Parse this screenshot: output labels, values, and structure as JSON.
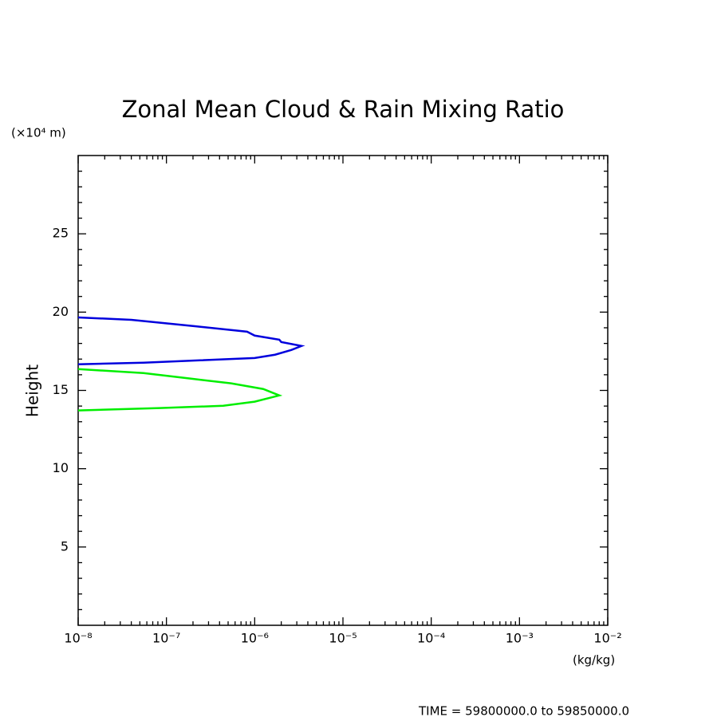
{
  "chart_data": {
    "type": "line",
    "title": "Zonal Mean Cloud & Rain Mixing Ratio",
    "y_label": "Height",
    "y_unit": "(×10⁴ m)",
    "x_unit": "(kg/kg)",
    "footer": "TIME = 59800000.0 to 59850000.0",
    "x_log": true,
    "xlim": [
      1e-08,
      0.01
    ],
    "ylim": [
      0,
      30
    ],
    "xticks": [
      {
        "value": 1e-08,
        "label": "10⁻⁸"
      },
      {
        "value": 1e-07,
        "label": "10⁻⁷"
      },
      {
        "value": 1e-06,
        "label": "10⁻⁶"
      },
      {
        "value": 1e-05,
        "label": "10⁻⁵"
      },
      {
        "value": 0.0001,
        "label": "10⁻⁴"
      },
      {
        "value": 0.001,
        "label": "10⁻³"
      },
      {
        "value": 0.01,
        "label": "10⁻²"
      }
    ],
    "xminorticks": [
      2e-08,
      3e-08,
      4e-08,
      5e-08,
      6e-08,
      7e-08,
      8e-08,
      9e-08,
      2e-07,
      3e-07,
      4e-07,
      5e-07,
      6e-07,
      7e-07,
      8e-07,
      9e-07,
      2e-06,
      3e-06,
      4e-06,
      5e-06,
      6e-06,
      7e-06,
      8e-06,
      9e-06,
      2e-05,
      3e-05,
      4e-05,
      5e-05,
      6e-05,
      7e-05,
      8e-05,
      9e-05,
      0.0002,
      0.0003,
      0.0004,
      0.0005,
      0.0006,
      0.0007,
      0.0008,
      0.0009,
      0.002,
      0.003,
      0.004,
      0.005,
      0.006,
      0.007,
      0.008,
      0.009
    ],
    "yticks": [
      5,
      10,
      15,
      20,
      25
    ],
    "yminorticks": [
      1,
      2,
      3,
      4,
      6,
      7,
      8,
      9,
      11,
      12,
      13,
      14,
      16,
      17,
      18,
      19,
      21,
      22,
      23,
      24,
      26,
      27,
      28,
      29
    ],
    "series": [
      {
        "color": "#0000dd",
        "x": [
          1e-08,
          4e-08,
          2.1e-07,
          8.2e-07,
          1e-06,
          1.9e-06,
          2e-06,
          3.4e-06,
          2.6e-06,
          1.7e-06,
          1e-06,
          2.4e-07,
          5.5e-08,
          1e-08
        ],
        "y": [
          19.66,
          19.51,
          19.1,
          18.75,
          18.5,
          18.24,
          18.09,
          17.84,
          17.58,
          17.28,
          17.07,
          16.92,
          16.77,
          16.67
        ]
      },
      {
        "color": "#00ee00",
        "x": [
          1e-08,
          5.5e-08,
          1.9e-07,
          5.4e-07,
          1.25e-06,
          1.9e-06,
          1e-06,
          4.4e-07,
          8.4e-08,
          1e-08
        ],
        "y": [
          16.36,
          16.11,
          15.75,
          15.45,
          15.09,
          14.68,
          14.28,
          14.02,
          13.87,
          13.72
        ]
      }
    ]
  }
}
